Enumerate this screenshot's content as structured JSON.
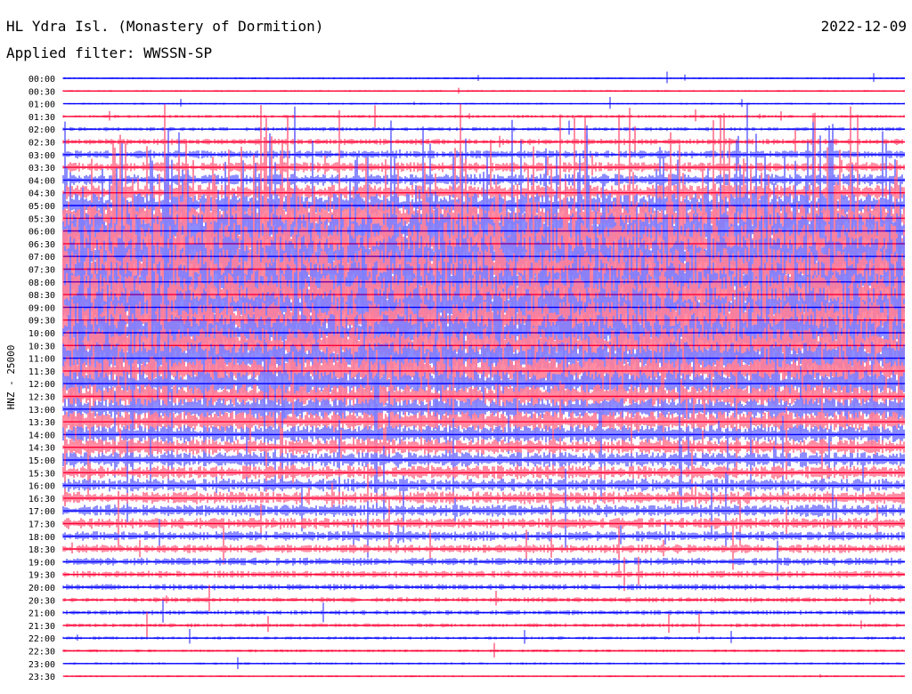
{
  "header": {
    "station": "HL Ydra Isl. (Monastery of Dormition)",
    "filter": "Applied filter: WWSSN-SP",
    "date": "2022-12-09"
  },
  "chart_data": {
    "type": "line",
    "ylabel": "HNZ - 25000",
    "trace_colors": [
      "#0000ff",
      "#ff0033"
    ],
    "rows": [
      "00:00",
      "00:30",
      "01:00",
      "01:30",
      "02:00",
      "02:30",
      "03:00",
      "03:30",
      "04:00",
      "04:30",
      "05:00",
      "05:30",
      "06:00",
      "06:30",
      "07:00",
      "07:30",
      "08:00",
      "08:30",
      "09:00",
      "09:30",
      "10:00",
      "10:30",
      "11:00",
      "11:30",
      "12:00",
      "12:30",
      "13:00",
      "13:30",
      "14:00",
      "14:30",
      "15:00",
      "15:30",
      "16:00",
      "16:30",
      "17:00",
      "17:30",
      "18:00",
      "18:30",
      "19:00",
      "19:30",
      "20:00",
      "20:30",
      "21:00",
      "21:30",
      "22:00",
      "22:30",
      "23:00",
      "23:30"
    ],
    "activity": [
      0.05,
      0.05,
      0.05,
      0.08,
      0.1,
      0.15,
      0.2,
      0.25,
      0.3,
      0.4,
      0.6,
      0.8,
      0.9,
      1.0,
      1.0,
      1.0,
      1.0,
      1.0,
      0.95,
      0.9,
      0.9,
      0.85,
      0.8,
      0.7,
      0.65,
      0.6,
      0.55,
      0.5,
      0.45,
      0.4,
      0.38,
      0.35,
      0.33,
      0.32,
      0.3,
      0.28,
      0.25,
      0.22,
      0.2,
      0.18,
      0.15,
      0.13,
      0.12,
      0.1,
      0.08,
      0.07,
      0.06,
      0.05
    ]
  }
}
